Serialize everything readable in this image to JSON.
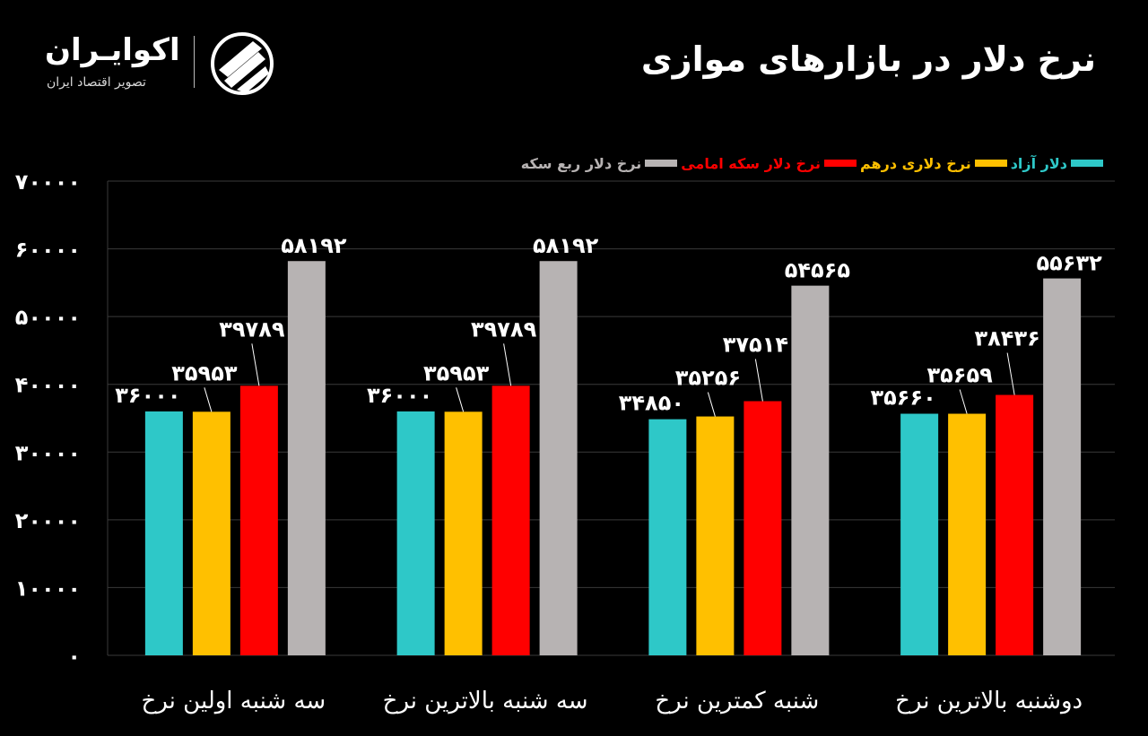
{
  "header": {
    "title": "نرخ دلار در بازارهای موازی",
    "logo_name": "اکوایـران",
    "logo_tagline": "تصویر اقتصاد ایران"
  },
  "colors": {
    "background": "#000000",
    "grid": "#3a3a3a",
    "text": "#ffffff"
  },
  "chart_data": {
    "type": "bar",
    "title": "نرخ دلار در بازارهای موازی",
    "categories": [
      "سه شنبه اولین نرخ",
      "سه شنبه بالاترین نرخ",
      "شنبه کمترین نرخ",
      "دوشنبه بالاترین نرخ"
    ],
    "series": [
      {
        "name": "دلار آزاد",
        "color": "#2ec8c8",
        "values": [
          36000,
          36000,
          34850,
          35660
        ]
      },
      {
        "name": "نرخ دلاری درهم",
        "color": "#ffc000",
        "values": [
          35953,
          35953,
          35256,
          35659
        ]
      },
      {
        "name": "نرخ دلار سکه امامی",
        "color": "#ff0000",
        "values": [
          39789,
          39789,
          37514,
          38436
        ]
      },
      {
        "name": "نرخ دلار ربع سکه",
        "color": "#b7b3b3",
        "values": [
          58192,
          58192,
          54565,
          55632
        ]
      }
    ],
    "value_labels": [
      [
        "۳۶۰۰۰",
        "۳۶۰۰۰",
        "۳۴۸۵۰",
        "۳۵۶۶۰"
      ],
      [
        "۳۵۹۵۳",
        "۳۵۹۵۳",
        "۳۵۲۵۶",
        "۳۵۶۵۹"
      ],
      [
        "۳۹۷۸۹",
        "۳۹۷۸۹",
        "۳۷۵۱۴",
        "۳۸۴۳۶"
      ],
      [
        "۵۸۱۹۲",
        "۵۸۱۹۲",
        "۵۴۵۶۵",
        "۵۵۶۳۲"
      ]
    ],
    "y_ticks": [
      0,
      10000,
      20000,
      30000,
      40000,
      50000,
      60000,
      70000
    ],
    "y_tick_labels": [
      "۰",
      "۱۰۰۰۰",
      "۲۰۰۰۰",
      "۳۰۰۰۰",
      "۴۰۰۰۰",
      "۵۰۰۰۰",
      "۶۰۰۰۰",
      "۷۰۰۰۰"
    ],
    "ylim": [
      0,
      70000
    ],
    "xlabel": "",
    "ylabel": "",
    "grid": true,
    "legend_position": "top-right"
  }
}
